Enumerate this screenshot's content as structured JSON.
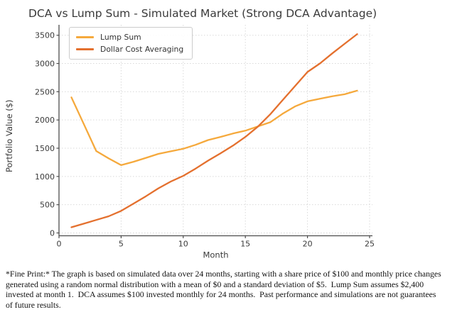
{
  "figure": {
    "title": "DCA vs Lump Sum - Simulated Market (Strong DCA Advantage)"
  },
  "chart_data": {
    "type": "line",
    "title": "DCA vs Lump Sum - Simulated Market (Strong DCA Advantage)",
    "xlabel": "Month",
    "ylabel": "Portfolio Value ($)",
    "x_ticks": [
      0,
      5,
      10,
      15,
      20,
      25
    ],
    "y_ticks": [
      0,
      500,
      1000,
      1500,
      2000,
      2500,
      3000,
      3500
    ],
    "xlim": [
      0,
      25
    ],
    "ylim": [
      0,
      3500
    ],
    "grid": true,
    "grid_style": "dotted",
    "legend_position": "upper-left",
    "x": [
      1,
      2,
      3,
      4,
      5,
      6,
      7,
      8,
      9,
      10,
      11,
      12,
      13,
      14,
      15,
      16,
      17,
      18,
      19,
      20,
      21,
      22,
      23,
      24
    ],
    "series": [
      {
        "name": "Lump Sum",
        "color": "#F5A93C",
        "values": [
          2400,
          1925,
          1450,
          1320,
          1200,
          1260,
          1330,
          1400,
          1445,
          1490,
          1560,
          1645,
          1700,
          1760,
          1810,
          1885,
          1960,
          2110,
          2240,
          2330,
          2375,
          2420,
          2455,
          2520
        ]
      },
      {
        "name": "Dollar Cost Averaging",
        "color": "#E4702E",
        "values": [
          100,
          165,
          230,
          295,
          390,
          520,
          650,
          790,
          910,
          1010,
          1140,
          1280,
          1410,
          1545,
          1700,
          1880,
          2100,
          2350,
          2600,
          2850,
          3000,
          3180,
          3350,
          3520
        ]
      }
    ]
  },
  "fine_print": {
    "lines": [
      "*Fine Print:* The graph is based on simulated data over 24 months, starting with a share price of $100 and monthly price changes",
      "generated using a random normal distribution with a mean of $0 and a standard deviation of $5.  Lump Sum assumes $2,400",
      "invested at month 1.  DCA assumes $100 invested monthly for 24 months.  Past performance and simulations are not guarantees",
      "of future results."
    ]
  }
}
